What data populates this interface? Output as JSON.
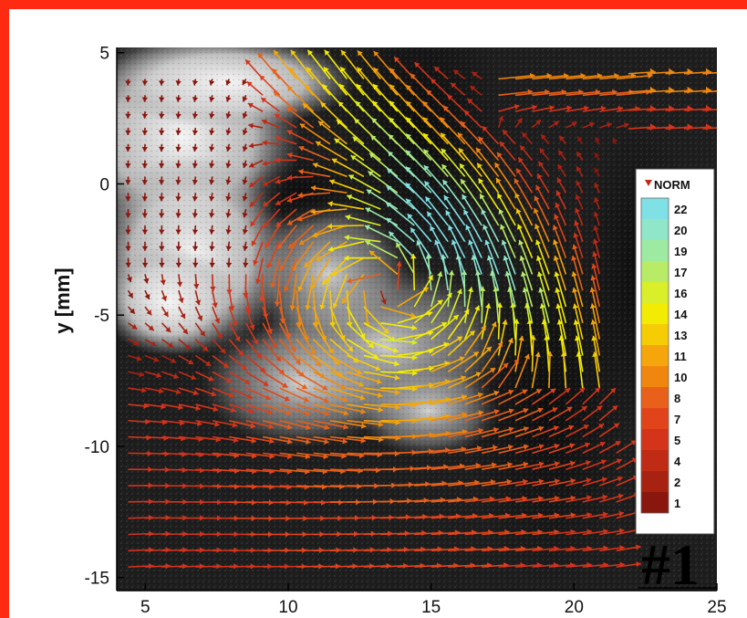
{
  "chart_data": {
    "type": "vector-field",
    "ylabel": "y [mm]",
    "xlabel": "",
    "xlim": [
      4,
      25
    ],
    "ylim": [
      -15.5,
      5.2
    ],
    "x_ticks": [
      "5",
      "10",
      "15",
      "20",
      "25"
    ],
    "y_ticks": [
      "5",
      "0",
      "-5",
      "-10",
      "-15"
    ],
    "x_tick_values": [
      5,
      10,
      15,
      20,
      25
    ],
    "y_tick_values": [
      5,
      0,
      -5,
      -10,
      -15
    ],
    "legend": {
      "title": "NORM",
      "levels": [
        "22",
        "20",
        "19",
        "17",
        "16",
        "14",
        "13",
        "11",
        "10",
        "8",
        "7",
        "5",
        "4",
        "2",
        "1"
      ],
      "colors": [
        "#7fe0e6",
        "#8fe6c9",
        "#9feaa3",
        "#b8ec66",
        "#d8ef2a",
        "#f2ec05",
        "#f6cc05",
        "#f4a60a",
        "#f0860e",
        "#e8601a",
        "#e1441a",
        "#d3341a",
        "#c02b16",
        "#a82212",
        "#8a170d"
      ]
    },
    "vortex": {
      "center": [
        13.5,
        -4
      ],
      "circulation": "counter-clockwise"
    },
    "jet": {
      "region": "upper-right",
      "direction": "toward upper-left",
      "peak_norm": 17
    },
    "background": "grayscale particle image (seeding)",
    "panel_label": "#1"
  },
  "colors": {
    "frame_border": "#ff2a12",
    "background": "#ffffff",
    "plot_background": "#1d1d1d"
  }
}
